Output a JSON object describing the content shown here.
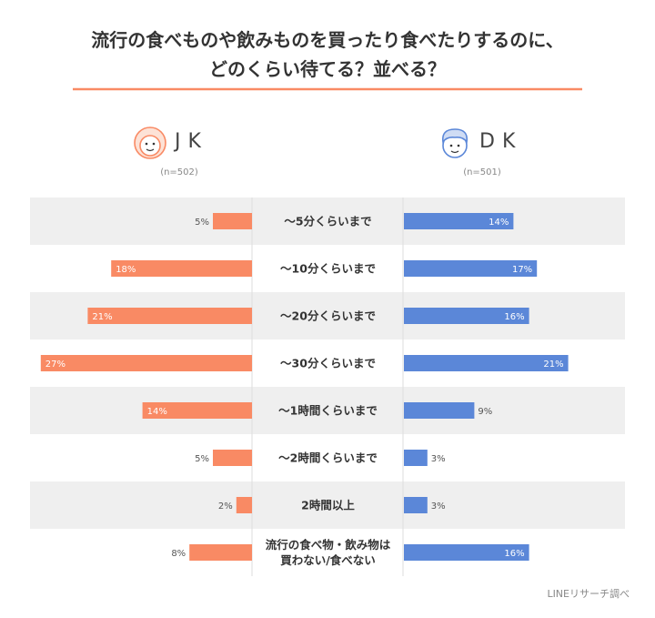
{
  "chart_data": {
    "type": "butterfly-bar",
    "title": "流行の食べものや飲みものを買ったり食べたりするのに、\nどのくらい待てる？並べる？",
    "categories": [
      "～5分くらいまで",
      "～10分くらいまで",
      "～20分くらいまで",
      "～30分くらいまで",
      "～1時間くらいまで",
      "～2時間くらいまで",
      "2時間以上",
      "流行の食べ物・飲み物は\n買わない/食べない"
    ],
    "series": [
      {
        "name": "JK",
        "note": "(n=502)",
        "color": "#f98a64",
        "side": "left",
        "values": [
          5,
          18,
          21,
          27,
          14,
          5,
          2,
          8
        ],
        "value_labels": [
          "5%",
          "18%",
          "21%",
          "27%",
          "14%",
          "5%",
          "2%",
          "8%"
        ]
      },
      {
        "name": "DK",
        "note": "(n=501)",
        "color": "#5b87d8",
        "side": "right",
        "values": [
          14,
          17,
          16,
          21,
          9,
          3,
          3,
          16
        ],
        "value_labels": [
          "14%",
          "17%",
          "16%",
          "21%",
          "9%",
          "3%",
          "3%",
          "16%"
        ]
      }
    ],
    "source": "LINEリサーチ調べ"
  }
}
